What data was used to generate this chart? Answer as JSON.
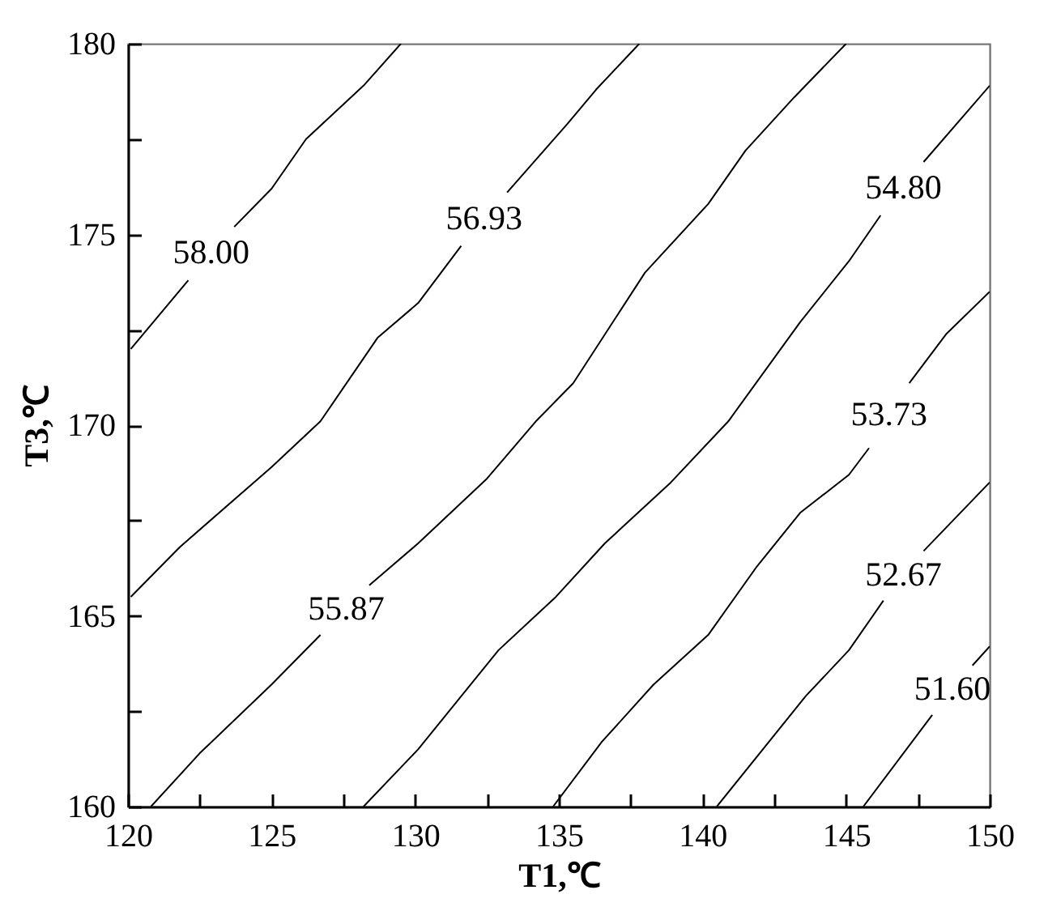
{
  "chart_data": {
    "type": "line",
    "xlabel": "T1,℃",
    "ylabel": "T3,℃",
    "xlim": [
      120,
      150
    ],
    "ylim": [
      160,
      180
    ],
    "xticks": [
      120,
      {
        "value": 122.5,
        "label": null
      },
      125,
      {
        "value": 127.5,
        "label": null
      },
      130,
      {
        "value": 132.5,
        "label": null
      },
      135,
      {
        "value": 137.5,
        "label": null
      },
      140,
      {
        "value": 142.5,
        "label": null
      },
      145,
      {
        "value": 147.5,
        "label": null
      },
      150
    ],
    "yticks": [
      160,
      {
        "value": 162.5,
        "label": null
      },
      165,
      {
        "value": 167.5,
        "label": null
      },
      170,
      {
        "value": 172.5,
        "label": null
      },
      175,
      {
        "value": 177.5,
        "label": null
      },
      180
    ],
    "grid": false,
    "marker": "none",
    "line_style": "solid",
    "series": [
      {
        "name": "58.00",
        "color": "#000000",
        "x": [
          120.1,
          122.1,
          122.9,
          123.7,
          125.0,
          126.2,
          128.2,
          129.5
        ],
        "values": [
          172.0,
          173.8,
          null,
          175.2,
          176.2,
          177.5,
          178.9,
          180
        ]
      },
      {
        "name": "56.93",
        "color": "#000000",
        "x": [
          120.1,
          121.8,
          125.0,
          126.7,
          128.7,
          130.1,
          131.6,
          132.4,
          133.2,
          135.3,
          136.3,
          137.8
        ],
        "values": [
          165.5,
          166.8,
          168.9,
          170.1,
          172.3,
          173.2,
          174.7,
          null,
          176.1,
          177.9,
          178.8,
          180
        ]
      },
      {
        "name": "55.87",
        "color": "#000000",
        "x": [
          120.8,
          122.5,
          125.0,
          126.7,
          127.6,
          128.4,
          130.1,
          132.5,
          134.2,
          135.5,
          138.0,
          140.2,
          141.5,
          143.2,
          145.0
        ],
        "values": [
          160,
          161.4,
          163.2,
          164.5,
          null,
          165.8,
          166.9,
          168.6,
          170.1,
          171.1,
          174.0,
          175.8,
          177.2,
          178.6,
          180
        ]
      },
      {
        "name": "54.80",
        "color": "#000000",
        "x": [
          128.2,
          130.1,
          132.9,
          134.9,
          136.6,
          138.9,
          140.9,
          143.4,
          145.1,
          146.2,
          147.0,
          147.7,
          150
        ],
        "values": [
          160,
          161.5,
          164.1,
          165.5,
          166.9,
          168.5,
          170.1,
          172.7,
          174.3,
          175.5,
          null,
          176.9,
          178.9
        ]
      },
      {
        "name": "53.73",
        "color": "#000000",
        "x": [
          134.8,
          136.5,
          138.3,
          140.2,
          141.9,
          143.4,
          145.1,
          145.8,
          146.5,
          147.2,
          148.5,
          150
        ],
        "values": [
          160,
          161.7,
          163.2,
          164.5,
          166.3,
          167.7,
          168.7,
          169.4,
          null,
          171.1,
          172.4,
          173.5
        ]
      },
      {
        "name": "52.67",
        "color": "#000000",
        "x": [
          140.5,
          143.6,
          145.1,
          146.3,
          147.0,
          147.7,
          150
        ],
        "values": [
          160,
          162.9,
          164.1,
          165.4,
          null,
          166.7,
          168.5
        ]
      },
      {
        "name": "51.60",
        "color": "#000000",
        "x": [
          145.6,
          148.0,
          148.7,
          149.4,
          150
        ],
        "values": [
          160,
          162.4,
          null,
          163.7,
          164.2
        ]
      }
    ]
  }
}
